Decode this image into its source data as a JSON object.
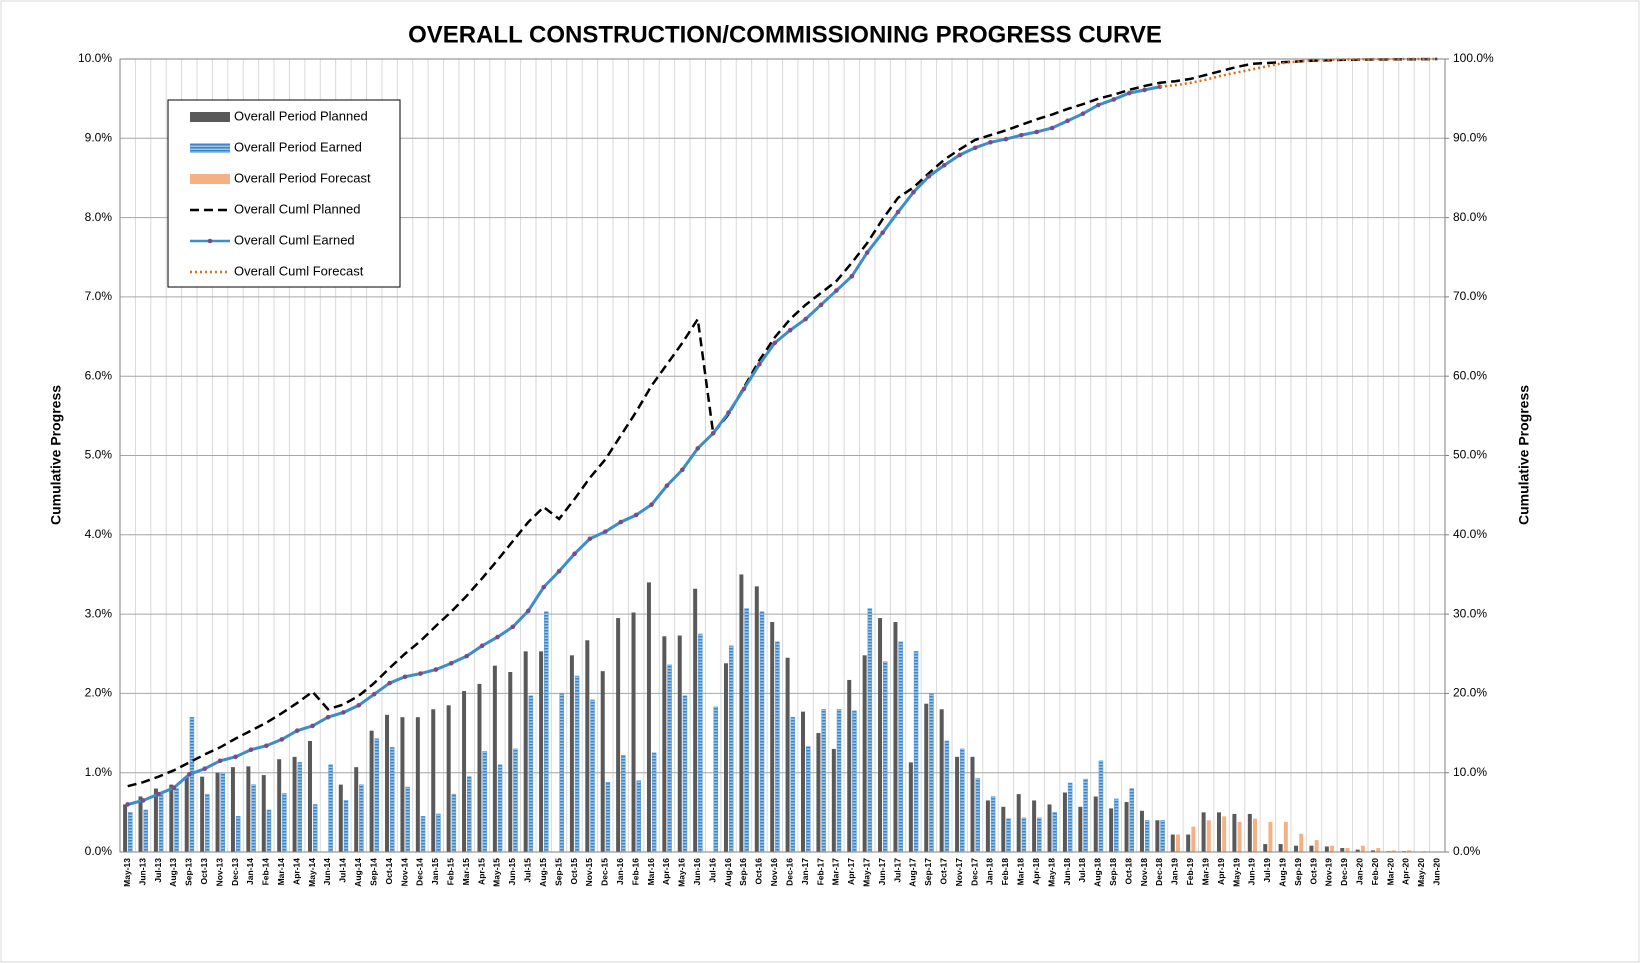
{
  "chart_data": {
    "type": "combo",
    "title": "OVERALL CONSTRUCTION/COMMISSIONING PROGRESS CURVE",
    "y_label": "Cumulative Progress",
    "y2_label": "Cumulative Progress",
    "grid": true,
    "legend": "top-left",
    "categories": [
      "May-13",
      "Jun-13",
      "Jul-13",
      "Aug-13",
      "Sep-13",
      "Oct-13",
      "Nov-13",
      "Dec-13",
      "Jan-14",
      "Feb-14",
      "Mar-14",
      "Apr-14",
      "May-14",
      "Jun-14",
      "Jul-14",
      "Aug-14",
      "Sep-14",
      "Oct-14",
      "Nov-14",
      "Dec-14",
      "Jan-15",
      "Feb-15",
      "Mar-15",
      "Apr-15",
      "May-15",
      "Jun-15",
      "Jul-15",
      "Aug-15",
      "Sep-15",
      "Oct-15",
      "Nov-15",
      "Dec-15",
      "Jan-16",
      "Feb-16",
      "Mar-16",
      "Apr-16",
      "May-16",
      "Jun-16",
      "Jul-16",
      "Aug-16",
      "Sep-16",
      "Oct-16",
      "Nov-16",
      "Dec-16",
      "Jan-17",
      "Feb-17",
      "Mar-17",
      "Apr-17",
      "May-17",
      "Jun-17",
      "Jul-17",
      "Aug-17",
      "Sep-17",
      "Oct-17",
      "Nov-17",
      "Dec-17",
      "Jan-18",
      "Feb-18",
      "Mar-18",
      "Apr-18",
      "May-18",
      "Jun-18",
      "Jul-18",
      "Aug-18",
      "Sep-18",
      "Oct-18",
      "Nov-18",
      "Dec-18",
      "Jan-19",
      "Feb-19",
      "Mar-19",
      "Apr-19",
      "May-19",
      "Jun-19",
      "Jul-19",
      "Aug-19",
      "Sep-19",
      "Oct-19",
      "Nov-19",
      "Dec-19",
      "Jan-20",
      "Feb-20",
      "Mar-20",
      "Apr-20",
      "May-20",
      "Jun-20"
    ],
    "ylim": [
      0,
      10
    ],
    "yticks": [
      {
        "value": 0,
        "label": "0.0%"
      },
      {
        "value": 1,
        "label": "1.0%"
      },
      {
        "value": 2,
        "label": "2.0%"
      },
      {
        "value": 3,
        "label": "3.0%"
      },
      {
        "value": 4,
        "label": "4.0%"
      },
      {
        "value": 5,
        "label": "5.0%"
      },
      {
        "value": 6,
        "label": "6.0%"
      },
      {
        "value": 7,
        "label": "7.0%"
      },
      {
        "value": 8,
        "label": "8.0%"
      },
      {
        "value": 9,
        "label": "9.0%"
      },
      {
        "value": 10,
        "label": "10.0%"
      }
    ],
    "y2lim": [
      0,
      100
    ],
    "y2ticks": [
      {
        "value": 0,
        "label": "0.0%"
      },
      {
        "value": 10,
        "label": "10.0%"
      },
      {
        "value": 20,
        "label": "20.0%"
      },
      {
        "value": 30,
        "label": "30.0%"
      },
      {
        "value": 40,
        "label": "40.0%"
      },
      {
        "value": 50,
        "label": "50.0%"
      },
      {
        "value": 60,
        "label": "60.0%"
      },
      {
        "value": 70,
        "label": "70.0%"
      },
      {
        "value": 80,
        "label": "80.0%"
      },
      {
        "value": 90,
        "label": "90.0%"
      },
      {
        "value": 100,
        "label": "100.0%"
      }
    ],
    "series": [
      {
        "name": "Overall Period Planned",
        "type": "bar",
        "slot": "left",
        "color": "#595959",
        "style": "solid",
        "values": [
          0.6,
          0.7,
          0.8,
          0.85,
          0.95,
          0.95,
          1.0,
          1.07,
          1.08,
          0.97,
          1.17,
          1.2,
          1.4,
          0,
          0.85,
          1.07,
          1.53,
          1.73,
          1.7,
          1.7,
          1.8,
          1.85,
          2.03,
          2.12,
          2.35,
          2.27,
          2.53,
          2.53,
          0,
          2.48,
          2.67,
          2.28,
          2.95,
          3.02,
          3.4,
          2.72,
          2.73,
          3.32,
          0,
          2.38,
          3.5,
          3.35,
          2.9,
          2.45,
          1.77,
          1.5,
          1.3,
          2.17,
          2.48,
          2.95,
          2.9,
          1.13,
          1.87,
          1.8,
          1.2,
          1.2,
          0.65,
          0.57,
          0.73,
          0.65,
          0.6,
          0.75,
          0.57,
          0.7,
          0.55,
          0.63,
          0.52,
          0.4,
          0.22,
          0.22,
          0.5,
          0.5,
          0.48,
          0.48,
          0.1,
          0.1,
          0.08,
          0.08,
          0.07,
          0.05,
          0.03,
          0.02,
          0.01,
          0.01,
          0,
          0
        ]
      },
      {
        "name": "Overall Period Earned",
        "type": "bar",
        "slot": "right",
        "color": "#5b9bd5",
        "style": "striped",
        "values": [
          0.5,
          0.53,
          0.75,
          0.8,
          1.7,
          0.73,
          1.0,
          0.45,
          0.85,
          0.53,
          0.74,
          1.13,
          0.6,
          1.1,
          0.65,
          0.85,
          1.43,
          1.32,
          0.82,
          0.45,
          0.48,
          0.73,
          0.95,
          1.27,
          1.1,
          1.3,
          1.97,
          3.03,
          2.0,
          2.22,
          1.92,
          0.88,
          1.22,
          0.9,
          1.25,
          2.36,
          1.97,
          2.75,
          1.83,
          2.6,
          3.07,
          3.03,
          2.65,
          1.7,
          1.33,
          1.8,
          1.8,
          1.78,
          3.07,
          2.4,
          2.65,
          2.53,
          2.0,
          1.4,
          1.3,
          0.93,
          0.7,
          0.42,
          0.43,
          0.43,
          0.5,
          0.87,
          0.92,
          1.15,
          0.67,
          0.8,
          0.4,
          0.4,
          null,
          null,
          null,
          null,
          null,
          null,
          null,
          null,
          null,
          null,
          null,
          null,
          null,
          null,
          null,
          null,
          null,
          null
        ]
      },
      {
        "name": "Overall Period Forecast",
        "type": "bar",
        "slot": "right",
        "color": "#f4b183",
        "style": "solid",
        "values": [
          null,
          null,
          null,
          null,
          null,
          null,
          null,
          null,
          null,
          null,
          null,
          null,
          null,
          null,
          null,
          null,
          null,
          null,
          null,
          null,
          null,
          null,
          null,
          null,
          null,
          null,
          null,
          null,
          null,
          null,
          null,
          null,
          null,
          null,
          null,
          null,
          null,
          null,
          null,
          null,
          null,
          null,
          null,
          null,
          null,
          null,
          null,
          null,
          null,
          null,
          null,
          null,
          null,
          null,
          null,
          null,
          null,
          null,
          null,
          null,
          null,
          null,
          null,
          null,
          null,
          null,
          null,
          null,
          0.22,
          0.32,
          0.4,
          0.45,
          0.38,
          0.42,
          0.38,
          0.38,
          0.23,
          0.15,
          0.08,
          0.05,
          0.08,
          0.05,
          0.02,
          0.02,
          0.01,
          0
        ]
      },
      {
        "name": "Overall Cuml Planned",
        "type": "line",
        "axis": "y2",
        "color": "#000000",
        "style": "dashed",
        "values": [
          8.3,
          8.8,
          9.5,
          10.3,
          11.3,
          12.3,
          13.2,
          14.3,
          15.3,
          16.3,
          17.5,
          18.8,
          20.2,
          18.0,
          18.6,
          19.7,
          21.3,
          23.2,
          25,
          26.6,
          28.5,
          30.3,
          32.3,
          34.5,
          36.8,
          39.2,
          41.6,
          43.5,
          42.0,
          44.5,
          47.2,
          49.5,
          52.5,
          55.5,
          58.8,
          61.5,
          64.2,
          67.2,
          52.8,
          55.2,
          58.6,
          62,
          64.9,
          67.2,
          69,
          70.5,
          72,
          74.3,
          76.8,
          79.8,
          82.5,
          83.8,
          85.6,
          87.3,
          88.6,
          89.8,
          90.4,
          91,
          91.7,
          92.4,
          93,
          93.7,
          94.3,
          95,
          95.5,
          96.1,
          96.6,
          97.0,
          97.2,
          97.5,
          98,
          98.5,
          99,
          99.4,
          99.5,
          99.6,
          99.7,
          99.8,
          99.85,
          99.9,
          99.93,
          99.95,
          99.96,
          99.97,
          99.98,
          100
        ]
      },
      {
        "name": "Overall Cuml Earned",
        "type": "line",
        "axis": "y2",
        "color": "#3c8dc8",
        "style": "solid",
        "marker_color": "#7a4a8c",
        "values": [
          6.0,
          6.5,
          7.3,
          8.1,
          9.8,
          10.5,
          11.5,
          12.0,
          12.9,
          13.4,
          14.2,
          15.3,
          15.9,
          17.0,
          17.6,
          18.5,
          19.9,
          21.3,
          22.1,
          22.5,
          23.0,
          23.8,
          24.7,
          26.0,
          27.1,
          28.4,
          30.4,
          33.4,
          35.4,
          37.6,
          39.5,
          40.4,
          41.6,
          42.5,
          43.8,
          46.2,
          48.2,
          50.9,
          52.8,
          55.4,
          58.4,
          61.5,
          64.2,
          65.8,
          67.2,
          69,
          70.8,
          72.6,
          75.6,
          78.1,
          80.7,
          83.2,
          85.2,
          86.6,
          87.9,
          88.8,
          89.5,
          89.9,
          90.4,
          90.8,
          91.3,
          92.2,
          93.1,
          94.2,
          94.9,
          95.7,
          96.1,
          96.5,
          null,
          null,
          null,
          null,
          null,
          null,
          null,
          null,
          null,
          null,
          null,
          null,
          null,
          null,
          null,
          null,
          null,
          null
        ]
      },
      {
        "name": "Overall Cuml Forecast",
        "type": "line",
        "axis": "y2",
        "color": "#e36c09",
        "style": "dotted",
        "values": [
          null,
          null,
          null,
          null,
          null,
          null,
          null,
          null,
          null,
          null,
          null,
          null,
          null,
          null,
          null,
          null,
          null,
          null,
          null,
          null,
          null,
          null,
          null,
          null,
          null,
          null,
          null,
          null,
          null,
          null,
          null,
          null,
          null,
          null,
          null,
          null,
          null,
          null,
          null,
          null,
          null,
          null,
          null,
          null,
          null,
          null,
          null,
          null,
          null,
          null,
          null,
          null,
          null,
          null,
          null,
          null,
          null,
          null,
          null,
          null,
          null,
          null,
          null,
          null,
          null,
          null,
          null,
          96.5,
          96.7,
          97.0,
          97.4,
          97.9,
          98.3,
          98.7,
          99.1,
          99.5,
          99.7,
          99.85,
          99.9,
          99.95,
          99.97,
          99.98,
          99.99,
          100,
          100,
          100
        ]
      }
    ]
  }
}
